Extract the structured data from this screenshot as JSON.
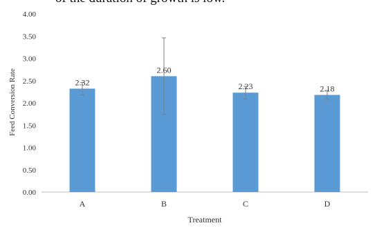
{
  "page": {
    "top_caption_fragment": "of the duration of growth is low."
  },
  "chart_data": {
    "type": "bar",
    "title": "",
    "xlabel": "Treatment",
    "ylabel": "Feed Conversion Rate",
    "categories": [
      "A",
      "B",
      "C",
      "D"
    ],
    "values": [
      2.32,
      2.6,
      2.23,
      2.18
    ],
    "value_labels": [
      "2.32",
      "2.60",
      "2.23",
      "2.18"
    ],
    "error_bars": [
      0.14,
      0.86,
      0.14,
      0.1
    ],
    "ylim": [
      0,
      4
    ],
    "yticks": [
      "0.00",
      "0.50",
      "1.00",
      "1.50",
      "2.00",
      "2.50",
      "3.00",
      "3.50",
      "4.00"
    ],
    "ytick_values": [
      0,
      0.5,
      1,
      1.5,
      2,
      2.5,
      3,
      3.5,
      4
    ],
    "grid": false,
    "legend": "none",
    "colors": {
      "bar": "#5b9bd5",
      "axis": "#bfbfbf",
      "error_bar": "#7f7f7f"
    }
  }
}
